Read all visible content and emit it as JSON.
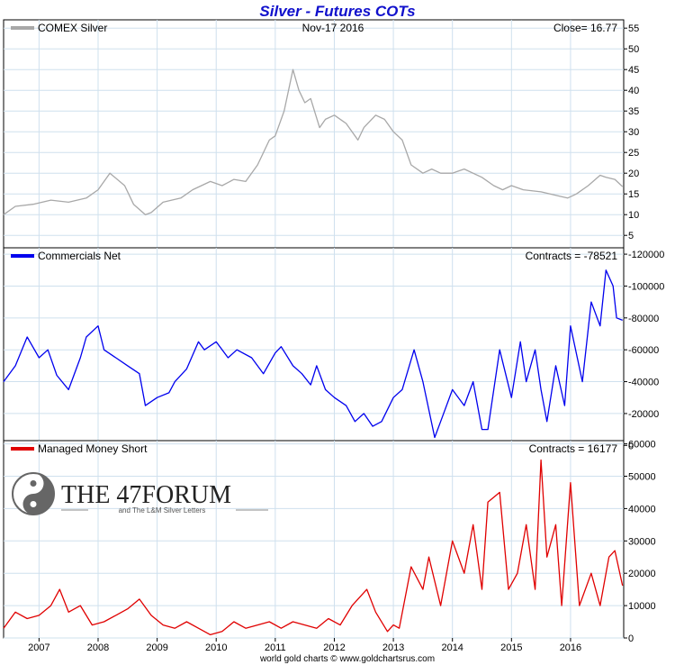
{
  "title": "Silver - Futures COTs",
  "footer": "world gold charts © www.goldchartsrus.com",
  "watermark": {
    "main": "THE 47FORUM",
    "sub": "and The L&M Silver Letters"
  },
  "colors": {
    "silver": "#a8a8a8",
    "commercials": "#0000ee",
    "managed": "#e00000",
    "title": "#1010cc",
    "grid": "#cfe0ee"
  },
  "chart_data": [
    {
      "type": "line",
      "legend": "COMEX Silver",
      "date_label": "Nov-17  2016",
      "readout": "Close= 16.77",
      "xlim": [
        2006.4,
        2016.9
      ],
      "ylim": [
        2,
        57
      ],
      "yticks": [
        5,
        10,
        15,
        20,
        25,
        30,
        35,
        40,
        45,
        50,
        55
      ],
      "x": [
        2006.4,
        2006.6,
        2006.9,
        2007.2,
        2007.5,
        2007.8,
        2008.0,
        2008.2,
        2008.45,
        2008.6,
        2008.8,
        2008.9,
        2009.1,
        2009.4,
        2009.6,
        2009.9,
        2010.1,
        2010.3,
        2010.5,
        2010.7,
        2010.9,
        2011.0,
        2011.15,
        2011.3,
        2011.4,
        2011.5,
        2011.6,
        2011.75,
        2011.85,
        2012.0,
        2012.2,
        2012.4,
        2012.5,
        2012.7,
        2012.85,
        2013.0,
        2013.15,
        2013.3,
        2013.5,
        2013.65,
        2013.8,
        2014.0,
        2014.2,
        2014.5,
        2014.7,
        2014.85,
        2015.0,
        2015.2,
        2015.5,
        2015.8,
        2015.95,
        2016.1,
        2016.3,
        2016.5,
        2016.6,
        2016.75,
        2016.88
      ],
      "values": [
        10,
        12,
        12.5,
        13.5,
        13,
        14,
        16,
        20,
        17,
        12.5,
        10,
        10.5,
        13,
        14,
        16,
        18,
        17,
        18.5,
        18,
        22,
        28,
        29,
        35,
        45,
        40,
        37,
        38,
        31,
        33,
        34,
        32,
        28,
        31,
        34,
        33,
        30,
        28,
        22,
        20,
        21,
        20,
        20,
        21,
        19,
        17,
        16,
        17,
        16,
        15.5,
        14.5,
        14,
        15,
        17,
        19.5,
        19,
        18.5,
        16.77
      ]
    },
    {
      "type": "line",
      "legend": "Commercials Net",
      "readout": "Contracts = -78521",
      "xlim": [
        2006.4,
        2016.9
      ],
      "ylim": [
        -3000,
        -124000
      ],
      "yticks": [
        0,
        -20000,
        -40000,
        -60000,
        -80000,
        -100000,
        -120000
      ],
      "x": [
        2006.4,
        2006.6,
        2006.8,
        2007.0,
        2007.15,
        2007.3,
        2007.5,
        2007.7,
        2007.8,
        2008.0,
        2008.1,
        2008.3,
        2008.5,
        2008.7,
        2008.8,
        2009.0,
        2009.2,
        2009.3,
        2009.5,
        2009.7,
        2009.8,
        2010.0,
        2010.2,
        2010.35,
        2010.6,
        2010.8,
        2011.0,
        2011.1,
        2011.3,
        2011.45,
        2011.6,
        2011.7,
        2011.85,
        2012.0,
        2012.2,
        2012.35,
        2012.5,
        2012.65,
        2012.8,
        2013.0,
        2013.15,
        2013.35,
        2013.5,
        2013.7,
        2013.8,
        2014.0,
        2014.2,
        2014.35,
        2014.5,
        2014.6,
        2014.8,
        2015.0,
        2015.15,
        2015.25,
        2015.4,
        2015.5,
        2015.6,
        2015.75,
        2015.9,
        2016.0,
        2016.2,
        2016.35,
        2016.5,
        2016.6,
        2016.72,
        2016.78,
        2016.88
      ],
      "values": [
        -40000,
        -50000,
        -68000,
        -55000,
        -60000,
        -44000,
        -35000,
        -55000,
        -68000,
        -75000,
        -60000,
        -55000,
        -50000,
        -45000,
        -25000,
        -30000,
        -33000,
        -40000,
        -48000,
        -65000,
        -60000,
        -65000,
        -55000,
        -60000,
        -55000,
        -45000,
        -58000,
        -62000,
        -50000,
        -45000,
        -38000,
        -50000,
        -35000,
        -30000,
        -25000,
        -15000,
        -20000,
        -12000,
        -15000,
        -30000,
        -35000,
        -60000,
        -40000,
        -5000,
        -15000,
        -35000,
        -25000,
        -40000,
        -10000,
        -10000,
        -60000,
        -30000,
        -65000,
        -40000,
        -60000,
        -35000,
        -15000,
        -50000,
        -25000,
        -75000,
        -40000,
        -90000,
        -75000,
        -110000,
        -100000,
        -80000,
        -78521
      ]
    },
    {
      "type": "line",
      "legend": "Managed Money Short",
      "readout": "Contracts = 16177",
      "xlim": [
        2006.4,
        2016.9
      ],
      "ylim": [
        0,
        61000
      ],
      "yticks": [
        0,
        10000,
        20000,
        30000,
        40000,
        50000,
        60000
      ],
      "x": [
        2006.4,
        2006.6,
        2006.8,
        2007.0,
        2007.2,
        2007.35,
        2007.5,
        2007.7,
        2007.9,
        2008.1,
        2008.3,
        2008.5,
        2008.7,
        2008.9,
        2009.1,
        2009.3,
        2009.5,
        2009.7,
        2009.9,
        2010.1,
        2010.3,
        2010.5,
        2010.7,
        2010.9,
        2011.1,
        2011.3,
        2011.5,
        2011.7,
        2011.9,
        2012.1,
        2012.3,
        2012.55,
        2012.7,
        2012.9,
        2013.0,
        2013.1,
        2013.3,
        2013.5,
        2013.6,
        2013.8,
        2014.0,
        2014.2,
        2014.35,
        2014.5,
        2014.6,
        2014.8,
        2014.95,
        2015.1,
        2015.25,
        2015.4,
        2015.5,
        2015.6,
        2015.75,
        2015.85,
        2016.0,
        2016.15,
        2016.35,
        2016.5,
        2016.65,
        2016.75,
        2016.88
      ],
      "values": [
        3000,
        8000,
        6000,
        7000,
        10000,
        15000,
        8000,
        10000,
        4000,
        5000,
        7000,
        9000,
        12000,
        7000,
        4000,
        3000,
        5000,
        3000,
        1000,
        2000,
        5000,
        3000,
        4000,
        5000,
        3000,
        5000,
        4000,
        3000,
        6000,
        4000,
        10000,
        15000,
        8000,
        2000,
        4000,
        3000,
        22000,
        15000,
        25000,
        10000,
        30000,
        20000,
        35000,
        15000,
        42000,
        45000,
        15000,
        20000,
        35000,
        15000,
        55000,
        25000,
        35000,
        10000,
        48000,
        10000,
        20000,
        10000,
        25000,
        27000,
        16177
      ]
    },
    {
      "type": "axis",
      "tick_labels": [
        "2007",
        "2008",
        "2009",
        "2010",
        "2011",
        "2012",
        "2013",
        "2014",
        "2015",
        "2016"
      ],
      "tick_values": [
        2007,
        2008,
        2009,
        2010,
        2011,
        2012,
        2013,
        2014,
        2015,
        2016
      ]
    }
  ]
}
